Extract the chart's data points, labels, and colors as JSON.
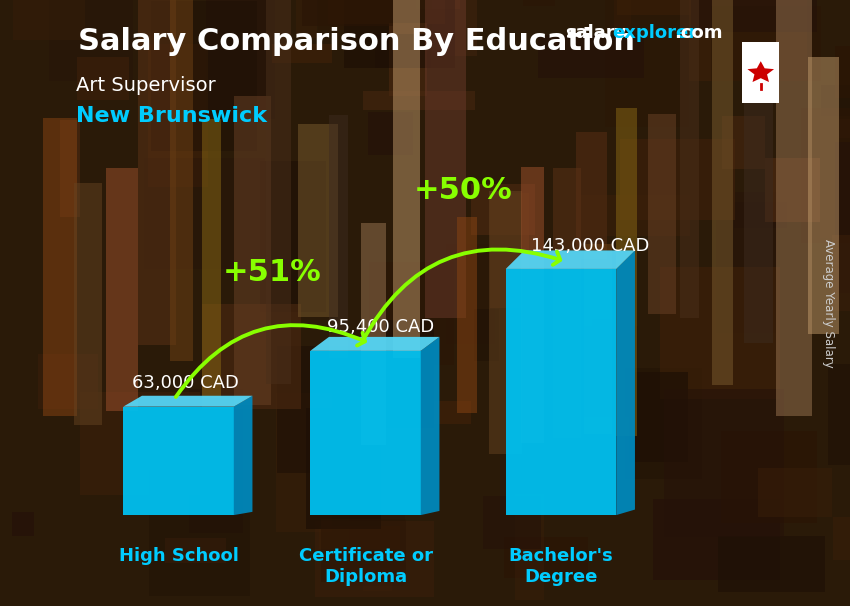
{
  "title_main": "Salary Comparison By Education",
  "subtitle1": "Art Supervisor",
  "subtitle2": "New Brunswick",
  "categories": [
    "High School",
    "Certificate or\nDiploma",
    "Bachelor's\nDegree"
  ],
  "values": [
    63000,
    95400,
    143000
  ],
  "value_labels": [
    "63,000 CAD",
    "95,400 CAD",
    "143,000 CAD"
  ],
  "bar_color_face": "#00C0F0",
  "bar_color_side": "#0088BB",
  "bar_color_top": "#55D5F5",
  "pct_labels": [
    "+51%",
    "+50%"
  ],
  "arrow_color": "#88FF00",
  "bg_color": "#2a1a08",
  "title_color": "#ffffff",
  "subtitle1_color": "#ffffff",
  "subtitle2_color": "#00CCFF",
  "label_color": "#ffffff",
  "cat_color": "#00CCFF",
  "site_salary_color": "#ffffff",
  "site_explorer_color": "#00CCFF",
  "site_dot_color": "#ffffff",
  "ylabel_text": "Average Yearly Salary",
  "ylabel_color": "#cccccc",
  "pct_fontsize": 22,
  "val_label_fontsize": 13,
  "cat_fontsize": 13,
  "title_fontsize": 22,
  "sub1_fontsize": 14,
  "sub2_fontsize": 16
}
